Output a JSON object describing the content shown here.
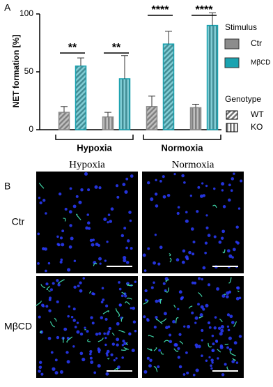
{
  "chart_data": {
    "type": "bar",
    "panel_label": "A",
    "y_label": "NET formation [%]",
    "categories": [
      null,
      null,
      null,
      null
    ],
    "groups": [
      "Hypoxia",
      "Normoxia"
    ],
    "series": [
      {
        "name": "Ctr",
        "color": "#8c8c8c",
        "values": [
          15,
          11,
          20,
          19
        ],
        "errors": [
          5,
          4,
          9,
          3
        ]
      },
      {
        "name": "MβCD",
        "color": "#1aa3b0",
        "values": [
          55,
          44,
          74,
          90
        ],
        "errors": [
          7,
          20,
          11,
          11
        ]
      }
    ],
    "significance": [
      "**",
      "**",
      "****",
      "****"
    ],
    "legend_title": "Stimulus",
    "genotype_title": "Genotype",
    "genotypes": [
      "WT",
      "KO"
    ],
    "ylim": [
      0,
      100
    ],
    "yticks": [
      0,
      50,
      100
    ]
  },
  "panel_b": {
    "label": "B",
    "columns": [
      "Hypoxia",
      "Normoxia"
    ],
    "rows": [
      "Ctr",
      "MβCD"
    ]
  }
}
